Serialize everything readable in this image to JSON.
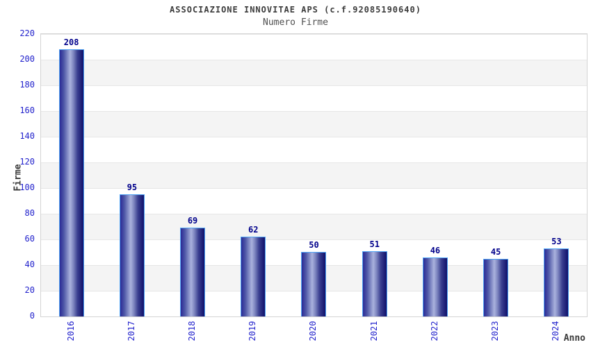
{
  "header": {
    "title": "ASSOCIAZIONE INNOVITAE APS (c.f.92085190640)",
    "subtitle": "Numero Firme"
  },
  "chart_data": {
    "type": "bar",
    "title": "ASSOCIAZIONE INNOVITAE APS (c.f.92085190640)",
    "subtitle": "Numero Firme",
    "categories": [
      "2016",
      "2017",
      "2018",
      "2019",
      "2020",
      "2021",
      "2022",
      "2023",
      "2024"
    ],
    "values": [
      208,
      95,
      69,
      62,
      50,
      51,
      46,
      45,
      53
    ],
    "xlabel": "Anno",
    "ylabel": "Firme",
    "ylim": [
      0,
      220
    ],
    "ytick_step": 20,
    "ytick_labels": [
      "0",
      "20",
      "40",
      "60",
      "80",
      "100",
      "120",
      "140",
      "160",
      "180",
      "200",
      "220"
    ],
    "grid": "horizontal-alternating-bands",
    "legend_position": "none",
    "colors": {
      "tick_label": "#2222cc",
      "value_label": "#00008b",
      "bar_border": "#4da3f5",
      "bar_dark": "#10106a",
      "bar_light": "#aab2dd",
      "band_gray": "#f4f4f4",
      "band_white": "#ffffff",
      "gridline": "#e6e6e6",
      "axis_text": "#3b3b3b"
    }
  }
}
